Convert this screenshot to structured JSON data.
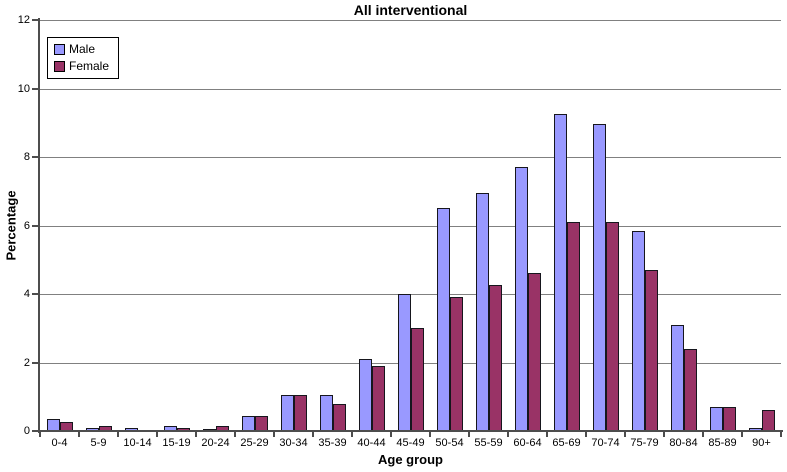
{
  "chart_data": {
    "type": "bar",
    "title": "All interventional",
    "xlabel": "Age group",
    "ylabel": "Percentage",
    "ylim": [
      0,
      12
    ],
    "ytick_step": 2,
    "grid": true,
    "legend_position": "top-left-inside",
    "plot_bg": "#ffffff",
    "gridline_color": "#808080",
    "axis_color": "#4d4d4d",
    "categories": [
      "0-4",
      "5-9",
      "10-14",
      "15-19",
      "20-24",
      "25-29",
      "30-34",
      "35-39",
      "40-44",
      "45-49",
      "50-54",
      "55-59",
      "60-64",
      "65-69",
      "70-74",
      "75-79",
      "80-84",
      "85-89",
      "90+"
    ],
    "series": [
      {
        "name": "Male",
        "color": "#9999FF",
        "values": [
          0.35,
          0.1,
          0.1,
          0.15,
          0.07,
          0.45,
          1.05,
          1.05,
          2.1,
          4.0,
          6.5,
          6.95,
          7.7,
          9.25,
          8.95,
          5.85,
          3.1,
          0.7,
          0.1
        ]
      },
      {
        "name": "Female",
        "color": "#993366",
        "values": [
          0.25,
          0.15,
          0.02,
          0.1,
          0.15,
          0.45,
          1.05,
          0.8,
          1.9,
          3.0,
          3.9,
          4.25,
          4.6,
          6.1,
          6.1,
          4.7,
          2.4,
          0.7,
          0.6
        ]
      }
    ]
  }
}
